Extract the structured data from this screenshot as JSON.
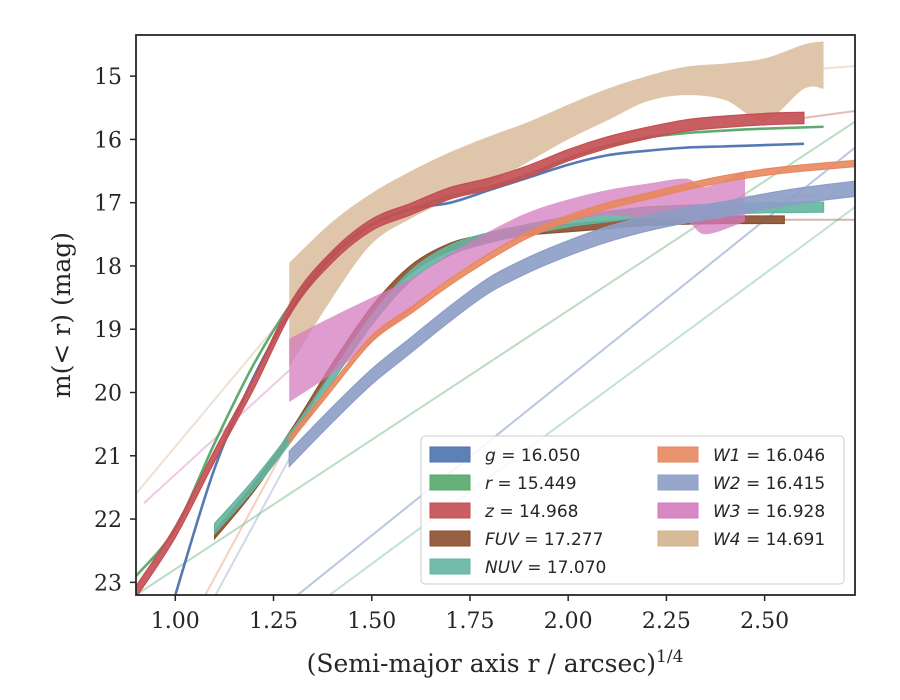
{
  "chart_data": {
    "type": "line",
    "title": "",
    "xlabel_main": "(Semi-major axis r / arcsec)",
    "xlabel_sup": "1/4",
    "ylabel": "m(< r) (mag)",
    "xlim": [
      0.9,
      2.73
    ],
    "ylim": [
      23.2,
      14.35
    ],
    "y_inverted": true,
    "x_ticks": [
      1.0,
      1.25,
      1.5,
      1.75,
      2.0,
      2.25,
      2.5
    ],
    "x_tick_labels": [
      "1.00",
      "1.25",
      "1.50",
      "1.75",
      "2.00",
      "2.25",
      "2.50"
    ],
    "y_ticks": [
      15,
      16,
      17,
      18,
      19,
      20,
      21,
      22,
      23
    ],
    "y_tick_labels": [
      "15",
      "16",
      "17",
      "18",
      "19",
      "20",
      "21",
      "22",
      "23"
    ],
    "grid": false,
    "legend_position": "lower-right",
    "series": [
      {
        "name": "g = 16.050",
        "color": "#4c72b0",
        "half_width": 0.03,
        "x": [
          1.0,
          1.1,
          1.2,
          1.3,
          1.4,
          1.5,
          1.6,
          1.7,
          1.8,
          1.9,
          2.0,
          2.1,
          2.2,
          2.3,
          2.4,
          2.5,
          2.6
        ],
        "y": [
          23.2,
          21.2,
          19.75,
          18.65,
          17.85,
          17.35,
          17.1,
          17.0,
          16.8,
          16.6,
          16.4,
          16.25,
          16.18,
          16.13,
          16.11,
          16.09,
          16.07
        ],
        "ext_x": [
          0.95,
          2.73
        ],
        "ext_y": [
          25.0,
          16.13
        ]
      },
      {
        "name": "r = 15.449",
        "color": "#55a868",
        "half_width": 0.03,
        "x": [
          0.9,
          1.0,
          1.1,
          1.2,
          1.3,
          1.4,
          1.5,
          1.6,
          1.7,
          1.8,
          1.9,
          2.0,
          2.1,
          2.2,
          2.3,
          2.4,
          2.5,
          2.65
        ],
        "y": [
          22.9,
          22.15,
          20.8,
          19.55,
          18.55,
          17.8,
          17.35,
          17.1,
          16.9,
          16.75,
          16.55,
          16.3,
          16.1,
          15.97,
          15.9,
          15.86,
          15.83,
          15.8
        ],
        "ext_x": [
          0.9,
          2.73
        ],
        "ext_y": [
          23.2,
          15.72
        ]
      },
      {
        "name": "z = 14.968",
        "color": "#c44e52",
        "half_width": 0.09,
        "x": [
          0.9,
          1.0,
          1.1,
          1.2,
          1.3,
          1.4,
          1.5,
          1.6,
          1.7,
          1.8,
          1.9,
          2.0,
          2.1,
          2.2,
          2.3,
          2.4,
          2.5,
          2.6
        ],
        "y": [
          23.15,
          22.2,
          21.0,
          19.85,
          18.6,
          17.85,
          17.35,
          17.1,
          16.85,
          16.7,
          16.5,
          16.25,
          16.05,
          15.9,
          15.78,
          15.72,
          15.68,
          15.66
        ],
        "ext_x": [
          2.6,
          2.73
        ],
        "ext_y": [
          15.66,
          15.55
        ]
      },
      {
        "name": "FUV = 17.277",
        "color": "#8c4f2e",
        "half_width": 0.06,
        "x": [
          1.1,
          1.2,
          1.3,
          1.4,
          1.5,
          1.6,
          1.7,
          1.8,
          1.9,
          2.0,
          2.1,
          2.2,
          2.3,
          2.4,
          2.55
        ],
        "y": [
          22.25,
          21.5,
          20.6,
          19.6,
          18.7,
          18.05,
          17.7,
          17.55,
          17.45,
          17.4,
          17.35,
          17.3,
          17.28,
          17.27,
          17.27
        ],
        "ext_x": [
          2.55,
          2.73
        ],
        "ext_y": [
          17.27,
          17.27
        ]
      },
      {
        "name": "NUV = 17.070",
        "color": "#64b5a0",
        "half_width": 0.08,
        "x": [
          1.1,
          1.2,
          1.3,
          1.4,
          1.5,
          1.6,
          1.7,
          1.8,
          1.9,
          2.0,
          2.1,
          2.2,
          2.3,
          2.4,
          2.5,
          2.65
        ],
        "y": [
          22.15,
          21.45,
          20.65,
          19.75,
          18.85,
          18.15,
          17.75,
          17.55,
          17.42,
          17.3,
          17.22,
          17.15,
          17.12,
          17.1,
          17.08,
          17.07
        ],
        "ext_x": [
          1.0,
          2.73
        ],
        "ext_y": [
          25.0,
          17.07
        ]
      },
      {
        "name": "W1 = 16.046",
        "color": "#e8875f",
        "half_width": 0.05,
        "x": [
          1.29,
          1.4,
          1.5,
          1.6,
          1.7,
          1.8,
          1.9,
          2.0,
          2.1,
          2.2,
          2.3,
          2.4,
          2.5,
          2.6,
          2.73
        ],
        "y": [
          20.75,
          19.9,
          19.15,
          18.7,
          18.25,
          17.85,
          17.5,
          17.25,
          17.05,
          16.9,
          16.75,
          16.62,
          16.52,
          16.45,
          16.38
        ],
        "ext_x": [
          1.05,
          1.29
        ],
        "ext_y": [
          23.5,
          20.75
        ]
      },
      {
        "name": "W2 = 16.415",
        "color": "#8c9dc6",
        "half_width": 0.12,
        "x": [
          1.29,
          1.4,
          1.5,
          1.6,
          1.7,
          1.8,
          1.9,
          2.0,
          2.1,
          2.2,
          2.3,
          2.4,
          2.5,
          2.6,
          2.73
        ],
        "y": [
          21.05,
          20.35,
          19.75,
          19.25,
          18.75,
          18.3,
          17.98,
          17.72,
          17.5,
          17.33,
          17.2,
          17.1,
          16.98,
          16.88,
          16.78
        ],
        "ext_x": [
          1.05,
          1.29
        ],
        "ext_y": [
          23.8,
          21.05
        ]
      },
      {
        "name": "W3 = 16.928",
        "color": "#d47bbd",
        "half_width": 0.0,
        "x": [
          1.29,
          1.4,
          1.5,
          1.6,
          1.7,
          1.8,
          1.9,
          2.0,
          2.1,
          2.2,
          2.3,
          2.35,
          2.45
        ],
        "y_upper": [
          19.15,
          18.8,
          18.5,
          18.2,
          17.8,
          17.45,
          17.15,
          16.95,
          16.8,
          16.7,
          16.62,
          16.75,
          16.5
        ],
        "y_lower": [
          20.15,
          19.7,
          19.2,
          18.7,
          18.2,
          17.8,
          17.5,
          17.3,
          17.2,
          17.25,
          17.3,
          17.5,
          17.3
        ],
        "ext_x": [
          0.92,
          1.29,
          2.45,
          2.73
        ],
        "ext_y": [
          21.75,
          19.65,
          16.9,
          16.9
        ]
      },
      {
        "name": "W4 = 14.691",
        "color": "#d4b38d",
        "half_width": 0.0,
        "x": [
          1.29,
          1.4,
          1.5,
          1.6,
          1.7,
          1.8,
          1.9,
          2.0,
          2.1,
          2.2,
          2.3,
          2.4,
          2.5,
          2.6,
          2.65
        ],
        "y_upper": [
          17.95,
          17.3,
          16.85,
          16.5,
          16.2,
          15.95,
          15.72,
          15.45,
          15.2,
          15.0,
          14.85,
          14.8,
          14.72,
          14.5,
          14.45
        ],
        "y_lower": [
          19.6,
          18.5,
          17.65,
          17.25,
          16.95,
          16.7,
          16.35,
          16.0,
          15.7,
          15.4,
          15.3,
          15.38,
          15.7,
          15.2,
          15.2
        ],
        "ext_x": [
          0.9,
          1.29,
          2.65,
          2.73
        ],
        "ext_y": [
          21.6,
          18.7,
          14.88,
          14.84
        ]
      }
    ]
  }
}
